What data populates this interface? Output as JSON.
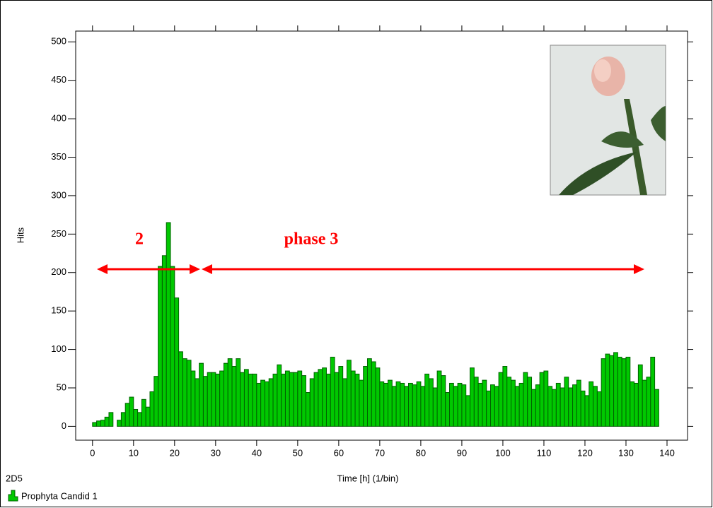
{
  "chart_data": {
    "type": "histogram",
    "y_label": "Hits",
    "x_label": "Time [h] (1/bin)",
    "panel_label": "2D5",
    "annotations": [
      "2",
      "phase 3"
    ],
    "bins": [
      0,
      1,
      2,
      3,
      4,
      5,
      6,
      7,
      8,
      9,
      10,
      11,
      12,
      13,
      14,
      15,
      16,
      17,
      18,
      19,
      20,
      21,
      22,
      23,
      24,
      25,
      26,
      27,
      28,
      29,
      30,
      31,
      32,
      33,
      34,
      35,
      36,
      37,
      38,
      39,
      40,
      41,
      42,
      43,
      44,
      45,
      46,
      47,
      48,
      49,
      50,
      51,
      52,
      53,
      54,
      55,
      56,
      57,
      58,
      59,
      60,
      61,
      62,
      63,
      64,
      65,
      66,
      67,
      68,
      69,
      70,
      71,
      72,
      73,
      74,
      75,
      76,
      77,
      78,
      79,
      80,
      81,
      82,
      83,
      84,
      85,
      86,
      87,
      88,
      89,
      90,
      91,
      92,
      93,
      94,
      95,
      96,
      97,
      98,
      99,
      100,
      101,
      102,
      103,
      104,
      105,
      106,
      107,
      108,
      109,
      110,
      111,
      112,
      113,
      114,
      115,
      116,
      117,
      118,
      119,
      120,
      121,
      122,
      123,
      124,
      125,
      126,
      127,
      128,
      129,
      130,
      131,
      132,
      133,
      134,
      135,
      136,
      137,
      138
    ],
    "series": [
      {
        "name": "Prophyta Candid 1",
        "color": "#00c800",
        "edge_color": "#006000",
        "values": [
          5,
          7,
          8,
          12,
          18,
          0,
          8,
          18,
          30,
          38,
          22,
          18,
          35,
          25,
          45,
          65,
          208,
          222,
          265,
          208,
          167,
          97,
          88,
          86,
          72,
          62,
          82,
          65,
          70,
          70,
          68,
          72,
          82,
          88,
          78,
          88,
          70,
          74,
          68,
          68,
          56,
          60,
          58,
          62,
          68,
          80,
          68,
          72,
          70,
          70,
          72,
          66,
          44,
          62,
          70,
          74,
          76,
          68,
          90,
          70,
          78,
          62,
          86,
          72,
          68,
          60,
          78,
          88,
          84,
          76,
          58,
          56,
          60,
          52,
          58,
          56,
          52,
          56,
          54,
          58,
          52,
          68,
          62,
          50,
          72,
          66,
          44,
          56,
          52,
          56,
          54,
          40,
          76,
          64,
          56,
          60,
          46,
          54,
          52,
          70,
          78,
          64,
          60,
          52,
          56,
          70,
          64,
          48,
          54,
          70,
          72,
          52,
          48,
          56,
          50,
          64,
          50,
          54,
          60,
          46,
          40,
          58,
          52,
          45,
          88,
          94,
          92,
          96,
          90,
          88,
          90,
          58,
          56,
          80,
          60,
          64,
          90,
          48
        ]
      }
    ],
    "xlim": [
      -4.1,
      145
    ],
    "ylim": [
      -18,
      514
    ],
    "xticks": [
      0,
      10,
      20,
      30,
      40,
      50,
      60,
      70,
      80,
      90,
      100,
      110,
      120,
      130,
      140
    ],
    "yticks": [
      0,
      50,
      100,
      150,
      200,
      250,
      300,
      350,
      400,
      450,
      500
    ]
  }
}
